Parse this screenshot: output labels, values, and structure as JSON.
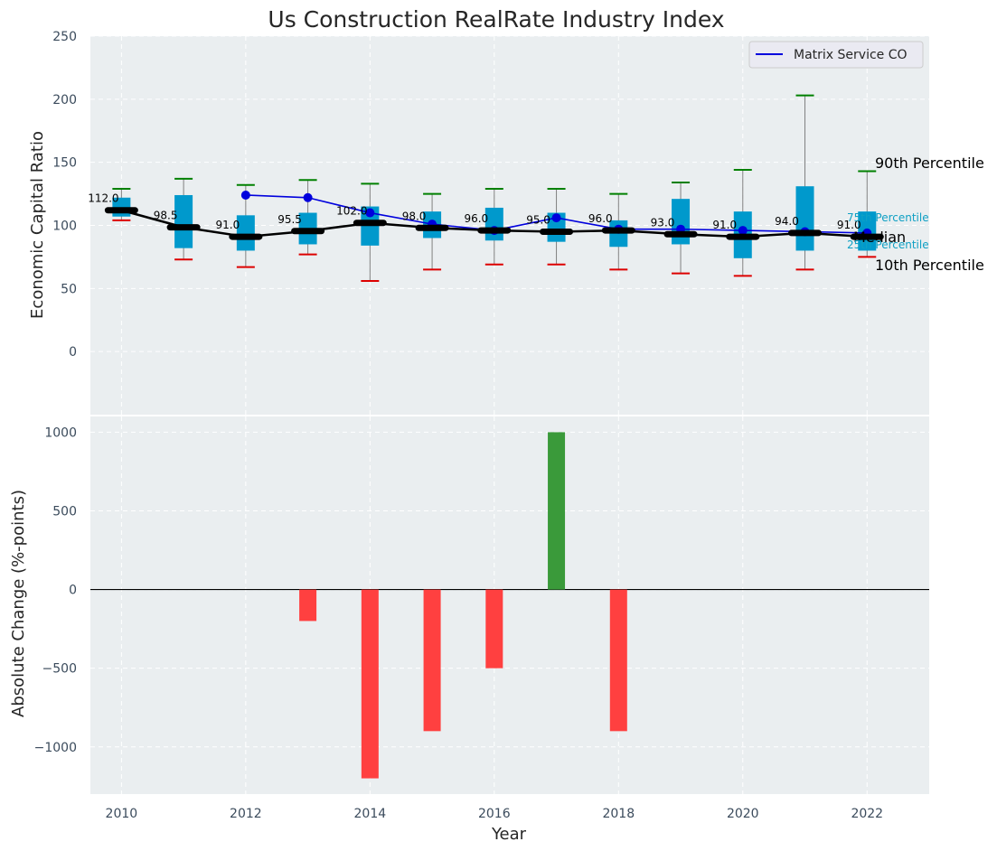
{
  "chart_data": [
    {
      "type": "box",
      "title": "Us Construction RealRate Industry Index",
      "xlabel": "",
      "ylabel": "Economic Capital Ratio",
      "ylim": [
        -50,
        250
      ],
      "yticks": [
        0,
        50,
        100,
        150,
        200,
        250
      ],
      "xlim": [
        2009.5,
        2023
      ],
      "grid": true,
      "years": [
        2010,
        2011,
        2012,
        2013,
        2014,
        2015,
        2016,
        2017,
        2018,
        2019,
        2020,
        2021,
        2022
      ],
      "boxes": [
        {
          "p10": 104,
          "q1": 107,
          "median": 112.0,
          "q3": 122,
          "p90": 129
        },
        {
          "p10": 73,
          "q1": 82,
          "median": 98.5,
          "q3": 124,
          "p90": 137
        },
        {
          "p10": 67,
          "q1": 80,
          "median": 91.0,
          "q3": 108,
          "p90": 132
        },
        {
          "p10": 77,
          "q1": 85,
          "median": 95.5,
          "q3": 110,
          "p90": 136
        },
        {
          "p10": 56,
          "q1": 84,
          "median": 102.0,
          "q3": 115,
          "p90": 133
        },
        {
          "p10": 65,
          "q1": 90,
          "median": 98.0,
          "q3": 111,
          "p90": 125
        },
        {
          "p10": 69,
          "q1": 88,
          "median": 96.0,
          "q3": 114,
          "p90": 129
        },
        {
          "p10": 69,
          "q1": 87,
          "median": 95.0,
          "q3": 110,
          "p90": 129
        },
        {
          "p10": 65,
          "q1": 83,
          "median": 96.0,
          "q3": 104,
          "p90": 125
        },
        {
          "p10": 62,
          "q1": 85,
          "median": 93.0,
          "q3": 121,
          "p90": 134
        },
        {
          "p10": 60,
          "q1": 74,
          "median": 91.0,
          "q3": 111,
          "p90": 144
        },
        {
          "p10": 65,
          "q1": 80,
          "median": 94.0,
          "q3": 131,
          "p90": 203
        },
        {
          "p10": 75,
          "q1": 80,
          "median": 91.0,
          "q3": 111,
          "p90": 143
        }
      ],
      "median_labels": [
        "112.0",
        "98.5",
        "91.0",
        "95.5",
        "102.0",
        "98.0",
        "96.0",
        "95.0",
        "96.0",
        "93.0",
        "91.0",
        "94.0",
        "91.0"
      ],
      "series": [
        {
          "name": "Matrix Service CO",
          "color": "#0000dd",
          "x": [
            2012,
            2013,
            2014,
            2015,
            2016,
            2017,
            2018,
            2019,
            2020,
            2021,
            2022
          ],
          "values": [
            124,
            122,
            110,
            101,
            96,
            106,
            97,
            97,
            96,
            95,
            94
          ]
        }
      ],
      "legend": "top-right",
      "side_labels": {
        "p90": "90th Percentile",
        "q3": "75th Percentile",
        "median": "Median",
        "q1": "25th Percentile",
        "p10": "10th Percentile"
      },
      "colors": {
        "box": "#0099cc",
        "median": "#000000",
        "p90_cap": "#008000",
        "p10_cap": "#dd0000",
        "whisker": "#808080"
      }
    },
    {
      "type": "bar",
      "xlabel": "Year",
      "ylabel": "Absolute Change (%-points)",
      "ylim": [
        -1300,
        1100
      ],
      "yticks": [
        -1000,
        -500,
        0,
        500,
        1000
      ],
      "xticks": [
        2010,
        2012,
        2014,
        2016,
        2018,
        2020,
        2022
      ],
      "grid": true,
      "x": [
        2013,
        2014,
        2015,
        2016,
        2017,
        2018
      ],
      "values": [
        -200,
        -1200,
        -900,
        -500,
        1000,
        -900
      ],
      "colors": {
        "positive": "#3a9a3a",
        "negative": "#ff4040"
      }
    }
  ]
}
